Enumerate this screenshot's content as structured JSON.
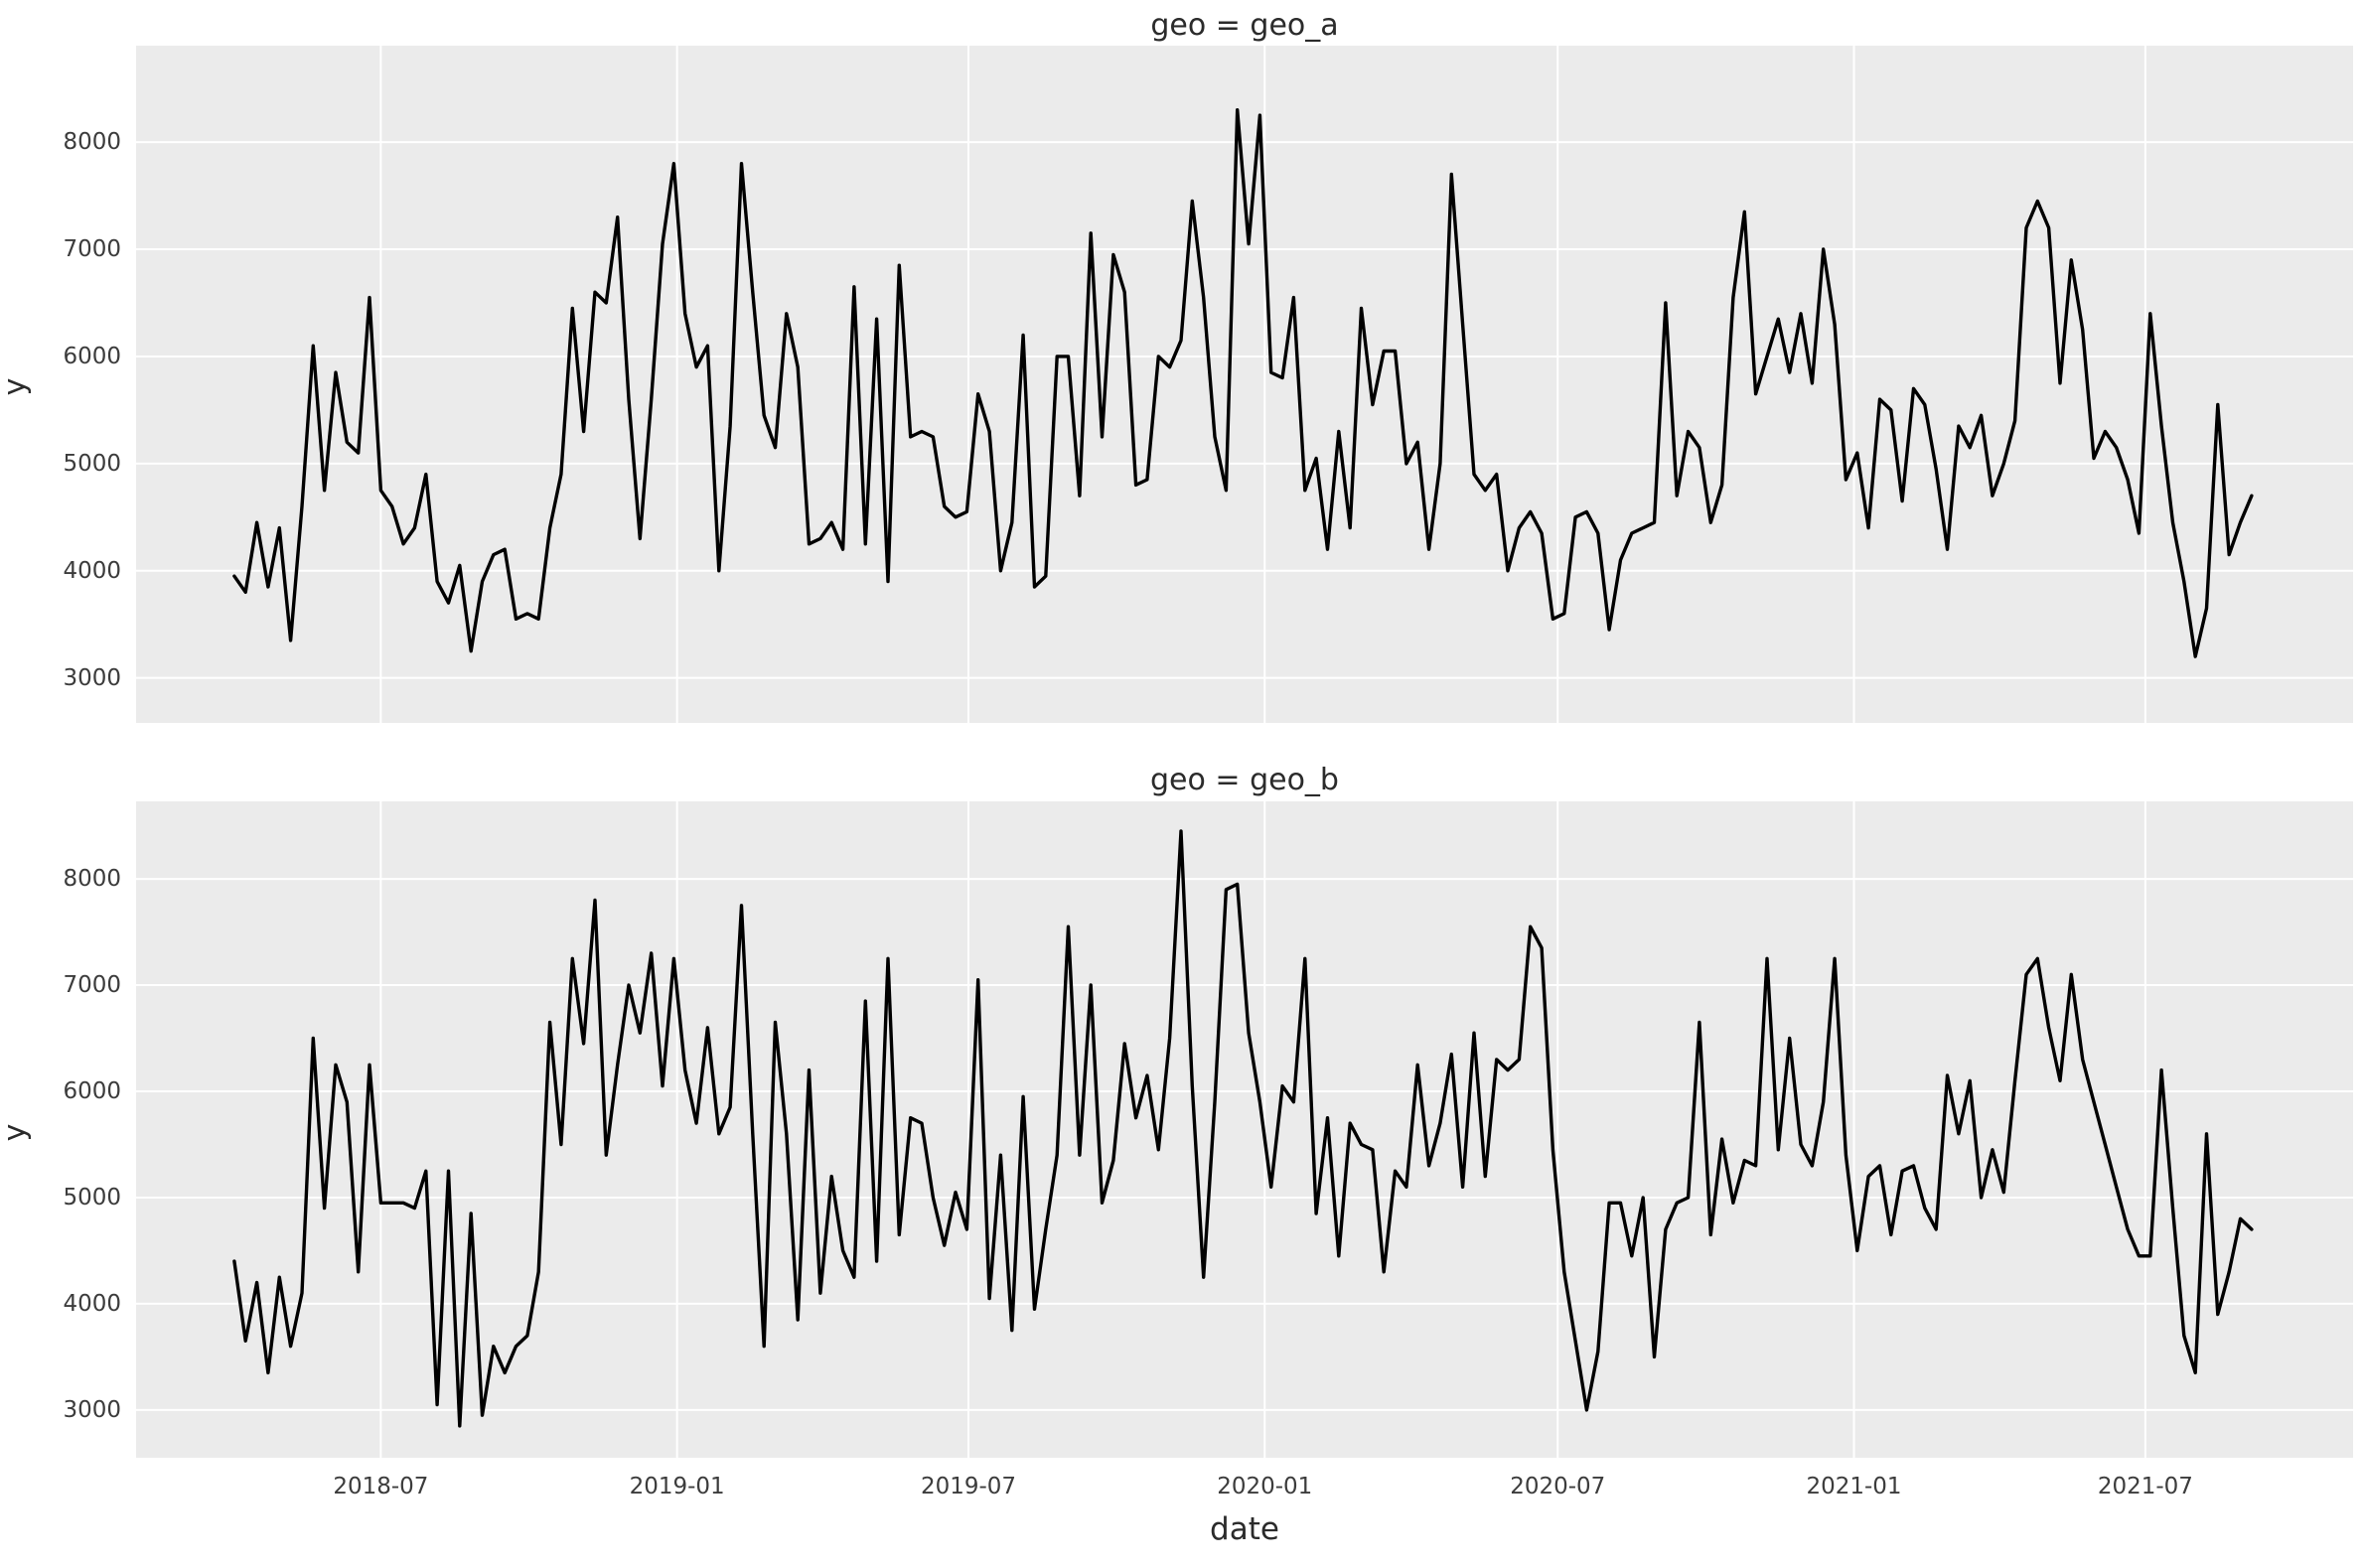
{
  "figure": {
    "background": "#ffffff",
    "plot_background": "#ebebeb",
    "grid_color": "#ffffff",
    "line_color": "#000000",
    "tick_color": "#3c3c3c",
    "text_color": "#2b2b2b",
    "xlabel": "date",
    "ylabel": "y"
  },
  "chart_data": [
    {
      "type": "line",
      "title": "geo = geo_a",
      "xlabel": "date",
      "ylabel": "y",
      "legend": "none",
      "grid": true,
      "x_start": "2018-04-01",
      "freq": "weekly",
      "xlim": [
        "2018-01-30",
        "2021-11-07"
      ],
      "ylim": [
        2580,
        8900
      ],
      "yticks": [
        3000,
        4000,
        5000,
        6000,
        7000,
        8000
      ],
      "xticks": [
        {
          "label": "2018-07",
          "date": "2018-07-01"
        },
        {
          "label": "2019-01",
          "date": "2019-01-01"
        },
        {
          "label": "2019-07",
          "date": "2019-07-01"
        },
        {
          "label": "2020-01",
          "date": "2020-01-01"
        },
        {
          "label": "2020-07",
          "date": "2020-07-01"
        },
        {
          "label": "2021-01",
          "date": "2021-01-01"
        },
        {
          "label": "2021-07",
          "date": "2021-07-01"
        }
      ],
      "values": [
        3950,
        3800,
        4450,
        3850,
        4400,
        3350,
        4600,
        6100,
        4750,
        5850,
        5200,
        5100,
        6550,
        4750,
        4600,
        4250,
        4400,
        4900,
        3900,
        3700,
        4050,
        3250,
        3900,
        4150,
        4200,
        3550,
        3600,
        3550,
        4400,
        4900,
        6450,
        5300,
        6600,
        6500,
        7300,
        5600,
        4300,
        5600,
        7050,
        7800,
        6400,
        5900,
        6100,
        4000,
        5350,
        7800,
        6600,
        5450,
        5150,
        6400,
        5900,
        4250,
        4300,
        4450,
        4200,
        6650,
        4250,
        6350,
        3900,
        6850,
        5250,
        5300,
        5250,
        4600,
        4500,
        4550,
        5650,
        5300,
        4000,
        4450,
        6200,
        3850,
        3950,
        6000,
        6000,
        4700,
        7150,
        5250,
        6950,
        6600,
        4800,
        4850,
        6000,
        5900,
        6150,
        7450,
        6550,
        5250,
        4750,
        8300,
        7050,
        8250,
        5850,
        5800,
        6550,
        4750,
        5050,
        4200,
        5300,
        4400,
        6450,
        5550,
        6050,
        6050,
        5000,
        5200,
        4200,
        5000,
        7700,
        6300,
        4900,
        4750,
        4900,
        4000,
        4400,
        4550,
        4350,
        3550,
        3600,
        4500,
        4550,
        4350,
        3450,
        4100,
        4350,
        4400,
        4450,
        6500,
        4700,
        5300,
        5150,
        4450,
        4800,
        6550,
        7350,
        5650,
        6000,
        6350,
        5850,
        6400,
        5750,
        7000,
        6300,
        4850,
        5100,
        4400,
        5600,
        5500,
        4650,
        5700,
        5550,
        4950,
        4200,
        5350,
        5150,
        5450,
        4700,
        5000,
        5400,
        7200,
        7450,
        7200,
        5750,
        6900,
        6250,
        5050,
        5300,
        5150,
        4850,
        4350,
        6400,
        5350,
        4450,
        3900,
        3200,
        3650,
        5550,
        4150,
        4450,
        4700
      ]
    },
    {
      "type": "line",
      "title": "geo = geo_b",
      "xlabel": "date",
      "ylabel": "y",
      "legend": "none",
      "grid": true,
      "x_start": "2018-04-01",
      "freq": "weekly",
      "xlim": [
        "2018-01-30",
        "2021-11-07"
      ],
      "ylim": [
        2550,
        8730
      ],
      "yticks": [
        3000,
        4000,
        5000,
        6000,
        7000,
        8000
      ],
      "xticks": [
        {
          "label": "2018-07",
          "date": "2018-07-01"
        },
        {
          "label": "2019-01",
          "date": "2019-01-01"
        },
        {
          "label": "2019-07",
          "date": "2019-07-01"
        },
        {
          "label": "2020-01",
          "date": "2020-01-01"
        },
        {
          "label": "2020-07",
          "date": "2020-07-01"
        },
        {
          "label": "2021-01",
          "date": "2021-01-01"
        },
        {
          "label": "2021-07",
          "date": "2021-07-01"
        }
      ],
      "values": [
        4400,
        3650,
        4200,
        3350,
        4250,
        3600,
        4100,
        6500,
        4900,
        6250,
        5900,
        4300,
        6250,
        4950,
        4950,
        4950,
        4900,
        5250,
        3050,
        5250,
        2850,
        4850,
        2950,
        3600,
        3350,
        3600,
        3700,
        4300,
        6650,
        5500,
        7250,
        6450,
        7800,
        5400,
        6250,
        7000,
        6550,
        7300,
        6050,
        7250,
        6200,
        5700,
        6600,
        5600,
        5850,
        7750,
        5600,
        3600,
        6650,
        5600,
        3850,
        6200,
        4100,
        5200,
        4500,
        4250,
        6850,
        4400,
        7250,
        4650,
        5750,
        5700,
        5000,
        4550,
        5050,
        4700,
        7050,
        4050,
        5400,
        3750,
        5950,
        3950,
        4700,
        5400,
        7550,
        5400,
        7000,
        4950,
        5350,
        6450,
        5750,
        6150,
        5450,
        6500,
        8450,
        6050,
        4250,
        5900,
        7900,
        7950,
        6550,
        5900,
        5100,
        6050,
        5900,
        7250,
        4850,
        5750,
        4450,
        5700,
        5500,
        5450,
        4300,
        5250,
        5100,
        6250,
        5300,
        5700,
        6350,
        5100,
        6550,
        5200,
        6300,
        6200,
        6300,
        7550,
        7350,
        5450,
        4300,
        3650,
        3000,
        3550,
        4950,
        4950,
        4450,
        5000,
        3500,
        4700,
        4950,
        5000,
        6650,
        4650,
        5550,
        4950,
        5350,
        5300,
        7250,
        5450,
        6500,
        5500,
        5300,
        5900,
        7250,
        5400,
        4500,
        5200,
        5300,
        4650,
        5250,
        5300,
        4900,
        4700,
        6150,
        5600,
        6100,
        5000,
        5450,
        5050,
        6100,
        7100,
        7250,
        6600,
        6100,
        7100,
        6300,
        5900,
        5500,
        5100,
        4700,
        4450,
        4450,
        6200,
        4900,
        3700,
        3350,
        5600,
        3900,
        4300,
        4800,
        4700
      ]
    }
  ],
  "layout_note": "two stacked subplots sharing the date axis"
}
